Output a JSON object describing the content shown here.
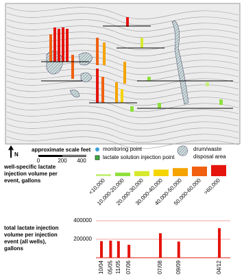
{
  "map": {
    "north": "N",
    "scale_label": "approximate scale feet",
    "scale_ticks": [
      "0",
      "200",
      "400"
    ],
    "legend": [
      {
        "label": "monitoring point"
      },
      {
        "label": "lactate solution injection point"
      },
      {
        "label": [
          "drum/waste",
          "disposal area"
        ]
      }
    ]
  },
  "chart_data": [
    {
      "type": "colorscale",
      "title": [
        "well-specific lactate",
        "injection volume per",
        "event, gallons"
      ],
      "categories": [
        "<10,000",
        "10,000-20,000",
        "20,000-30,000",
        "30,000-40,000",
        "40,000-50,000",
        "50,000-60,000",
        ">60,000"
      ],
      "colors": [
        "#c6f07c",
        "#8fe03c",
        "#d6ea2e",
        "#f6d400",
        "#f5a300",
        "#f06010",
        "#e5140c"
      ]
    },
    {
      "type": "bar",
      "title": [
        "total lactate injection",
        "volume per injection",
        "event (all wells),",
        "gallons"
      ],
      "categories": [
        "10/04",
        "05/05",
        "11/05",
        "07/06",
        "07/08",
        "09/09",
        "04/12"
      ],
      "values": [
        180000,
        185000,
        180000,
        140000,
        265000,
        175000,
        320000
      ],
      "color": "#e5140c",
      "ylim": [
        0,
        400000
      ],
      "yticks": [
        200000,
        400000
      ],
      "grid": true
    }
  ]
}
